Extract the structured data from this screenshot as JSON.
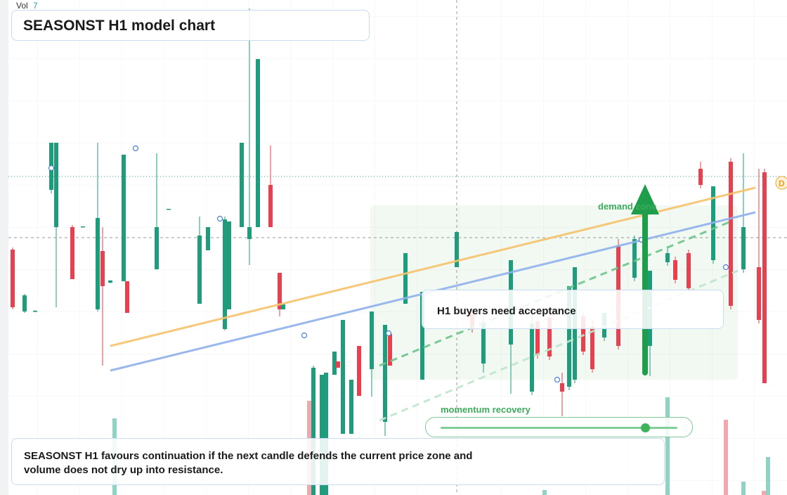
{
  "chart_data": {
    "type": "candlestick",
    "title": "SEASONST H1 model chart",
    "note": "SEASONST H1 favours continuation if the next candle defends the current price zone and volume does not dry up into resistance.",
    "callout": "H1 buyers need acceptance",
    "slider_label": "momentum recovery",
    "tag": "D",
    "volume_label": "Vol",
    "volume_value": 7,
    "xlim": [
      0,
      112
    ],
    "ylim": [
      0,
      70.4
    ],
    "up_color": "#1e9c7c",
    "down_color": "#e8404f",
    "x": [
      1.8,
      3.5,
      5.0,
      7.3,
      8.0,
      10.3,
      11.8,
      13.9,
      14.6,
      15.7,
      17.6,
      18.1,
      22.3,
      24.0,
      28.4,
      29.6,
      32.0,
      32.6,
      34.4,
      35.5,
      36.7,
      38.5,
      39.8,
      40.3,
      44.6,
      45.8,
      46.4,
      47.6,
      48.1,
      48.8,
      50.0,
      51.1,
      52.9,
      54.8,
      55.5,
      57.7,
      60.1,
      65.0,
      67.2,
      68.8,
      72.7,
      75.7,
      76.5,
      78.2,
      80.0,
      81.0,
      81.8,
      83.0,
      84.3,
      86.0,
      88.0,
      90.3,
      92.5,
      95.0,
      96.1,
      98.0,
      99.7,
      101.5,
      104.0,
      105.8,
      108.0,
      108.8
    ],
    "open": [
      34.9,
      26.1,
      26.1,
      43.4,
      38.1,
      38.1,
      38.1,
      26.4,
      34.7,
      30.2,
      30.4,
      30.4,
      32.1,
      40.6,
      27.2,
      34.8,
      23.6,
      26.4,
      38.1,
      36.4,
      38.1,
      44.1,
      31.6,
      26.4,
      0,
      0,
      0,
      17.1,
      19.0,
      8.7,
      8.7,
      21.2,
      17.9,
      10.4,
      22.9,
      27.2,
      16.4,
      32.4,
      26.4,
      18.7,
      21.4,
      14.7,
      24.7,
      25.2,
      15.9,
      15.4,
      16.4,
      25.4,
      23.9,
      22.4,
      35.4,
      30.9,
      21.2,
      33.1,
      33.4,
      34.4,
      46.4,
      33.4,
      47.4,
      32.1,
      32.4,
      45.9
    ],
    "high": [
      35.2,
      28.6,
      26.3,
      50.1,
      50.1,
      38.4,
      38.2,
      50.1,
      38.1,
      30.6,
      48.4,
      30.4,
      48.6,
      40.7,
      39.6,
      38.1,
      39.6,
      38.9,
      50.1,
      69.2,
      62.0,
      49.7,
      31.6,
      27.1,
      18.4,
      17.1,
      17.4,
      20.4,
      19.0,
      24.9,
      16.4,
      21.2,
      26.1,
      24.2,
      22.9,
      34.4,
      28.9,
      37.4,
      26.9,
      25.4,
      33.4,
      25.9,
      25.2,
      26.4,
      17.4,
      29.7,
      32.4,
      25.9,
      24.9,
      25.9,
      36.4,
      36.9,
      31.9,
      35.4,
      33.9,
      34.9,
      47.4,
      43.9,
      47.9,
      48.6,
      46.4,
      46.4
    ],
    "low": [
      26.4,
      25.9,
      26.0,
      42.9,
      26.7,
      30.7,
      38.1,
      26.1,
      18.4,
      30.1,
      30.4,
      25.9,
      32.1,
      40.6,
      27.2,
      34.8,
      23.4,
      26.4,
      38.1,
      32.7,
      38.1,
      38.1,
      25.4,
      26.4,
      0,
      0,
      0,
      17.1,
      18.1,
      8.7,
      8.7,
      14.1,
      14.0,
      8.4,
      18.4,
      27.2,
      16.4,
      32.4,
      23.1,
      17.4,
      14.4,
      14.2,
      19.4,
      19.2,
      11.2,
      14.9,
      15.9,
      19.9,
      17.4,
      21.9,
      20.7,
      30.4,
      16.9,
      32.6,
      30.1,
      28.9,
      43.6,
      32.9,
      26.4,
      31.6,
      24.4,
      15.9
    ],
    "close": [
      26.7,
      28.4,
      26.2,
      50.1,
      50.1,
      30.7,
      38.2,
      39.4,
      29.7,
      30.5,
      48.4,
      25.9,
      38.1,
      40.7,
      36.9,
      38.1,
      39.2,
      38.9,
      50.1,
      38.1,
      62.0,
      38.1,
      26.4,
      27.1,
      18.1,
      17.1,
      17.4,
      20.4,
      18.1,
      24.9,
      16.4,
      14.1,
      26.1,
      24.2,
      18.4,
      34.4,
      28.9,
      37.4,
      23.6,
      24.4,
      33.4,
      24.4,
      19.9,
      19.7,
      14.7,
      29.7,
      32.4,
      20.4,
      17.9,
      25.9,
      21.2,
      36.4,
      31.9,
      34.4,
      30.6,
      29.4,
      44.1,
      43.9,
      26.9,
      38.1,
      24.9,
      15.9
    ],
    "volume": {
      "ylim": [
        0,
        70.4
      ],
      "up_color": "#8fd3c4",
      "down_color": "#f2a7ae",
      "x": [
        16.3,
        44.0,
        77.5,
        95.0,
        103.3,
        105.8,
        108.7,
        109.3
      ],
      "values": [
        10.9,
        13.4,
        0.7,
        13.9,
        10.7,
        1.9,
        0.6,
        5.4
      ],
      "up": [
        true,
        false,
        true,
        true,
        false,
        true,
        false,
        true
      ]
    },
    "trendlines": [
      {
        "color": "#f5c26b",
        "dashed": false,
        "x": [
          15.7,
          107.5
        ],
        "values": [
          21.2,
          43.7
        ]
      },
      {
        "color": "#8fb0ea",
        "dashed": false,
        "x": [
          15.7,
          107.5
        ],
        "values": [
          17.7,
          40.2
        ]
      },
      {
        "color": "#6cc48a",
        "dashed": true,
        "x": [
          54,
          104
        ],
        "values": [
          18.4,
          38.9
        ]
      },
      {
        "color": "#bfe6cb",
        "dashed": true,
        "x": [
          54,
          105
        ],
        "values": [
          10.6,
          31.9
        ]
      }
    ],
    "markers": {
      "color": "#4a7fd6",
      "x": [
        7.3,
        19.3,
        31.3,
        43.3,
        55.3,
        79.3,
        91.3,
        103.3
      ],
      "values": [
        46.5,
        49.3,
        39.3,
        22.7,
        23.0,
        16.4,
        36.3,
        32.4
      ]
    },
    "zone": {
      "label": "demand zone",
      "x": [
        52.7,
        105
      ],
      "values": [
        16.4,
        41.2
      ]
    },
    "arrow": {
      "x": 91.8,
      "values": [
        17.4,
        44.2
      ],
      "color": "#1e9e4a"
    },
    "last_price": 45.3
  }
}
